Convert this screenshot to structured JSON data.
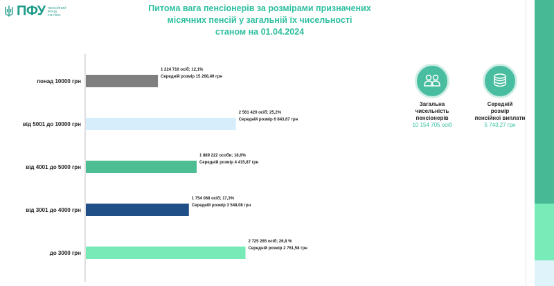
{
  "header": {
    "logo_abbr": "ПФУ",
    "logo_subtitle": "Пенсійний фонд України",
    "logo_icon": "trident-icon",
    "title_lines": [
      "Питома вага пенсіонерів за розмірами призначених",
      "місячних пенсій у загальній їх чисельності",
      "станом на 01.04.2024"
    ]
  },
  "chart_data": {
    "type": "bar",
    "orientation": "horizontal",
    "title": "Питома вага пенсіонерів за розмірами призначених місячних пенсій у загальній їх чисельності станом на 01.04.2024",
    "categories": [
      "понад 10000 грн",
      "від 5001 до 10000 грн",
      "від 4001 до 5000 грн",
      "від 3001 до 4000 грн",
      "до 3000 грн"
    ],
    "values": [
      12.1,
      25.2,
      18.6,
      17.3,
      26.8
    ],
    "counts": [
      1224710,
      2561420,
      1889222,
      1754068,
      2725285
    ],
    "colors": [
      "#7f7f7f",
      "#d6eefb",
      "#4dbd94",
      "#1f4f86",
      "#77eab7"
    ],
    "labels": [
      {
        "line1": "1 224 710 осіб;  12,1%",
        "line2": "Середній розмір 15 268,49 грн"
      },
      {
        "line1": "2 561 420 осіб; 25,2%",
        "line2": "Середній розмір 6 843,67 грн"
      },
      {
        "line1": "1 889 222 особи; 18,6%",
        "line2": "Середній розмір 4 415,87 грн"
      },
      {
        "line1": "1 754 068 осіб; 17,3%",
        "line2": "Середній розмір 3 548,08 грн"
      },
      {
        "line1": "2 725 285 осіб; 26,8 %",
        "line2": "Середній розмір 2 761,58 грн"
      }
    ],
    "xlim": [
      0,
      30
    ],
    "grid": false,
    "legend": "none"
  },
  "kpis": [
    {
      "icon": "people-group-icon",
      "title_lines": [
        "Загальна",
        "чисельність",
        "пенсіонерів"
      ],
      "value": "10 154 705 осіб"
    },
    {
      "icon": "coin-stack-icon",
      "title_lines": [
        "Середній",
        "розмір",
        "пенсійної виплати"
      ],
      "value": "5 743,27 грн"
    }
  ]
}
